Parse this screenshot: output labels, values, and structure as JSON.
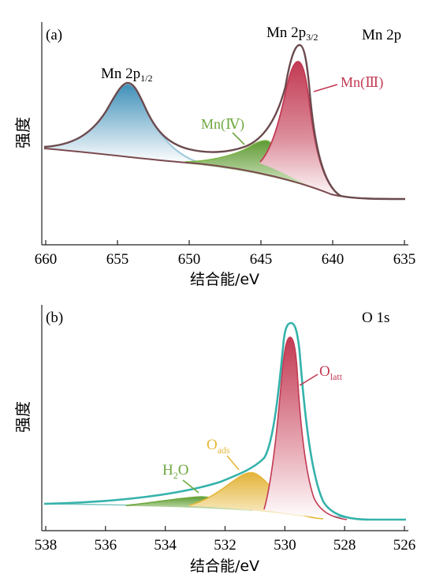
{
  "chart_data": [
    {
      "panel": "(a)",
      "type": "line",
      "title": "Mn 2p",
      "xlabel": "结合能/eV",
      "ylabel": "强度",
      "xlim": [
        660,
        635
      ],
      "x_reversed": true,
      "xticks": [
        "660",
        "655",
        "650",
        "645",
        "640",
        "635"
      ],
      "y_ticks_shown": false,
      "peak_labels": {
        "p12": {
          "main": "Mn 2p",
          "sub": "1/2",
          "x": 654.2
        },
        "p32": {
          "main": "Mn 2p",
          "sub": "3/2",
          "x": 642.4
        },
        "mn3": "Mn(Ⅲ)",
        "mn4": "Mn(Ⅳ)"
      },
      "series": [
        {
          "name": "Mn 2p1/2",
          "color": "#4f9cc0",
          "values": [
            [
              660,
              0.36
            ],
            [
              658,
              0.39
            ],
            [
              656,
              0.54
            ],
            [
              654.2,
              0.72
            ],
            [
              652,
              0.48
            ],
            [
              650,
              0.3
            ],
            [
              648,
              0.23
            ],
            [
              646,
              0.21
            ]
          ]
        },
        {
          "name": "Mn(Ⅳ)",
          "color": "#6ea83f",
          "values": [
            [
              652,
              0.22
            ],
            [
              648,
              0.24
            ],
            [
              646,
              0.31
            ],
            [
              645,
              0.37
            ],
            [
              643,
              0.25
            ],
            [
              641,
              0.15
            ],
            [
              639,
              0.11
            ]
          ]
        },
        {
          "name": "Mn(Ⅲ)",
          "color": "#c83d55",
          "values": [
            [
              646,
              0.22
            ],
            [
              644,
              0.52
            ],
            [
              642.5,
              0.94
            ],
            [
              641,
              0.68
            ],
            [
              639.5,
              0.25
            ],
            [
              638,
              0.12
            ],
            [
              635,
              0.11
            ]
          ]
        },
        {
          "name": "background",
          "color": "#7a4a4f",
          "values": [
            [
              660,
              0.36
            ],
            [
              655,
              0.35
            ],
            [
              650,
              0.29
            ],
            [
              645,
              0.24
            ],
            [
              642,
              0.17
            ],
            [
              640,
              0.12
            ],
            [
              635,
              0.11
            ]
          ]
        },
        {
          "name": "envelope",
          "color": "#6e4a4e",
          "values": [
            [
              660,
              0.36
            ],
            [
              654.2,
              0.72
            ],
            [
              650,
              0.33
            ],
            [
              645,
              0.38
            ],
            [
              643,
              0.8
            ],
            [
              642.4,
              0.98
            ],
            [
              641,
              0.7
            ],
            [
              639,
              0.18
            ],
            [
              635,
              0.11
            ]
          ]
        }
      ]
    },
    {
      "panel": "(b)",
      "type": "line",
      "title": "O 1s",
      "xlabel": "结合能/eV",
      "ylabel": "强度",
      "xlim": [
        538,
        526
      ],
      "x_reversed": true,
      "xticks": [
        "538",
        "536",
        "534",
        "532",
        "530",
        "528",
        "526"
      ],
      "y_ticks_shown": false,
      "peak_labels": {
        "olatt": {
          "main": "O",
          "sub": "latt"
        },
        "oads": {
          "main": "O",
          "sub": "ads"
        },
        "h2o": {
          "main": "H",
          "sub": "2",
          "tail": "O"
        }
      },
      "series": [
        {
          "name": "H2O",
          "color": "#6ea83f",
          "values": [
            [
              535.5,
              0.12
            ],
            [
              534,
              0.15
            ],
            [
              532.8,
              0.18
            ],
            [
              531.5,
              0.15
            ],
            [
              530.5,
              0.11
            ]
          ]
        },
        {
          "name": "Oads",
          "color": "#e9b93a",
          "values": [
            [
              533,
              0.12
            ],
            [
              532,
              0.2
            ],
            [
              531.2,
              0.3
            ],
            [
              530.5,
              0.24
            ],
            [
              529.5,
              0.11
            ]
          ]
        },
        {
          "name": "Olatt",
          "color": "#c83d55",
          "values": [
            [
              531,
              0.11
            ],
            [
              530.2,
              0.6
            ],
            [
              529.8,
              0.96
            ],
            [
              529.4,
              0.72
            ],
            [
              528.8,
              0.22
            ],
            [
              528,
              0.09
            ]
          ]
        },
        {
          "name": "envelope",
          "color": "#36b3ad",
          "values": [
            [
              538,
              0.11
            ],
            [
              535,
              0.13
            ],
            [
              532,
              0.24
            ],
            [
              530.8,
              0.34
            ],
            [
              530.2,
              0.7
            ],
            [
              529.9,
              1.0
            ],
            [
              529.5,
              0.8
            ],
            [
              528.8,
              0.24
            ],
            [
              527.5,
              0.09
            ],
            [
              526.2,
              0.08
            ]
          ]
        }
      ]
    }
  ]
}
